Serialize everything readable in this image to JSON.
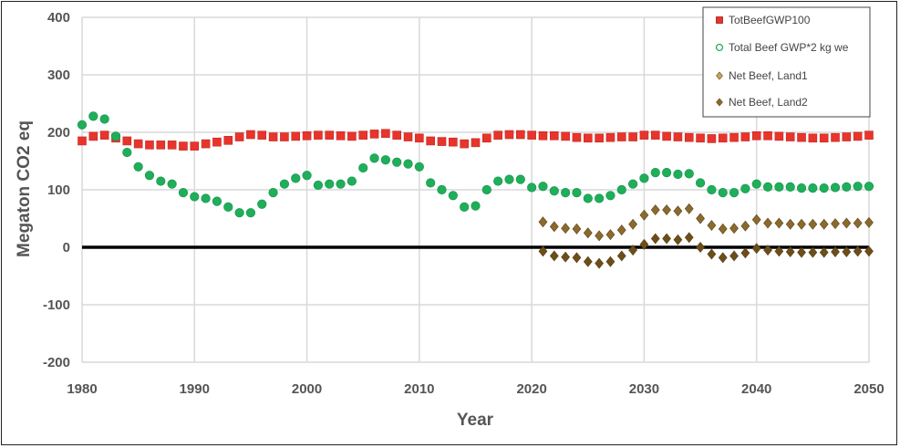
{
  "chart_data": {
    "type": "scatter",
    "xlabel": "Year",
    "ylabel": "Megaton CO2 eq",
    "xlim": [
      1980,
      2050
    ],
    "ylim": [
      -200,
      400
    ],
    "x_ticks": [
      "1980",
      "1990",
      "2000",
      "2010",
      "2020",
      "2030",
      "2040",
      "2050"
    ],
    "y_ticks": [
      "400",
      "300",
      "200",
      "100",
      "0",
      "-100",
      "-200"
    ],
    "grid": "on",
    "legend_position": "top-right",
    "series": [
      {
        "name": "TotBeefGWP100",
        "marker": "square",
        "color": "#e8342c",
        "x": [
          1980,
          1981,
          1982,
          1983,
          1984,
          1985,
          1986,
          1987,
          1988,
          1989,
          1990,
          1991,
          1992,
          1993,
          1994,
          1995,
          1996,
          1997,
          1998,
          1999,
          2000,
          2001,
          2002,
          2003,
          2004,
          2005,
          2006,
          2007,
          2008,
          2009,
          2010,
          2011,
          2012,
          2013,
          2014,
          2015,
          2016,
          2017,
          2018,
          2019,
          2020,
          2021,
          2022,
          2023,
          2024,
          2025,
          2026,
          2027,
          2028,
          2029,
          2030,
          2031,
          2032,
          2033,
          2034,
          2035,
          2036,
          2037,
          2038,
          2039,
          2040,
          2041,
          2042,
          2043,
          2044,
          2045,
          2046,
          2047,
          2048,
          2049,
          2050
        ],
        "y": [
          185,
          193,
          195,
          190,
          185,
          180,
          178,
          178,
          178,
          176,
          176,
          180,
          183,
          186,
          192,
          196,
          195,
          192,
          192,
          193,
          194,
          195,
          195,
          194,
          193,
          195,
          197,
          198,
          195,
          192,
          190,
          185,
          184,
          183,
          180,
          182,
          190,
          195,
          196,
          196,
          195,
          194,
          194,
          193,
          191,
          190,
          190,
          191,
          192,
          192,
          195,
          195,
          193,
          192,
          191,
          190,
          189,
          190,
          191,
          192,
          194,
          194,
          193,
          192,
          191,
          190,
          190,
          191,
          192,
          193,
          195
        ]
      },
      {
        "name": "Total Beef GWP*2  kg we",
        "marker": "circle",
        "color": "#1fae5a",
        "x": [
          1980,
          1981,
          1982,
          1983,
          1984,
          1985,
          1986,
          1987,
          1988,
          1989,
          1990,
          1991,
          1992,
          1993,
          1994,
          1995,
          1996,
          1997,
          1998,
          1999,
          2000,
          2001,
          2002,
          2003,
          2004,
          2005,
          2006,
          2007,
          2008,
          2009,
          2010,
          2011,
          2012,
          2013,
          2014,
          2015,
          2016,
          2017,
          2018,
          2019,
          2020,
          2021,
          2022,
          2023,
          2024,
          2025,
          2026,
          2027,
          2028,
          2029,
          2030,
          2031,
          2032,
          2033,
          2034,
          2035,
          2036,
          2037,
          2038,
          2039,
          2040,
          2041,
          2042,
          2043,
          2044,
          2045,
          2046,
          2047,
          2048,
          2049,
          2050
        ],
        "y": [
          213,
          228,
          223,
          193,
          165,
          140,
          125,
          115,
          110,
          95,
          88,
          85,
          80,
          70,
          60,
          60,
          75,
          95,
          110,
          120,
          125,
          108,
          110,
          110,
          115,
          138,
          155,
          152,
          148,
          145,
          140,
          112,
          100,
          90,
          70,
          72,
          100,
          115,
          118,
          118,
          104,
          106,
          98,
          95,
          95,
          85,
          85,
          90,
          100,
          110,
          120,
          130,
          130,
          127,
          128,
          112,
          100,
          95,
          95,
          102,
          110,
          105,
          105,
          105,
          103,
          103,
          103,
          104,
          105,
          106,
          106
        ]
      },
      {
        "name": "Net Beef, Land1",
        "marker": "diamond",
        "color": "#8b6a2e",
        "x": [
          2021,
          2022,
          2023,
          2024,
          2025,
          2026,
          2027,
          2028,
          2029,
          2030,
          2031,
          2032,
          2033,
          2034,
          2035,
          2036,
          2037,
          2038,
          2039,
          2040,
          2041,
          2042,
          2043,
          2044,
          2045,
          2046,
          2047,
          2048,
          2049,
          2050
        ],
        "y": [
          44,
          36,
          33,
          32,
          25,
          20,
          22,
          30,
          40,
          56,
          65,
          65,
          63,
          67,
          50,
          38,
          32,
          33,
          37,
          48,
          42,
          42,
          40,
          40,
          40,
          40,
          41,
          42,
          42,
          43
        ]
      },
      {
        "name": "Net Beef, Land2",
        "marker": "diamond",
        "color": "#6b4e1a",
        "x": [
          2021,
          2022,
          2023,
          2024,
          2025,
          2026,
          2027,
          2028,
          2029,
          2030,
          2031,
          2032,
          2033,
          2034,
          2035,
          2036,
          2037,
          2038,
          2039,
          2040,
          2041,
          2042,
          2043,
          2044,
          2045,
          2046,
          2047,
          2048,
          2049,
          2050
        ],
        "y": [
          -7,
          -15,
          -17,
          -18,
          -25,
          -28,
          -25,
          -15,
          -5,
          5,
          15,
          15,
          13,
          17,
          0,
          -12,
          -18,
          -15,
          -10,
          -2,
          -5,
          -7,
          -8,
          -9,
          -9,
          -9,
          -8,
          -8,
          -7,
          -7
        ]
      }
    ]
  }
}
